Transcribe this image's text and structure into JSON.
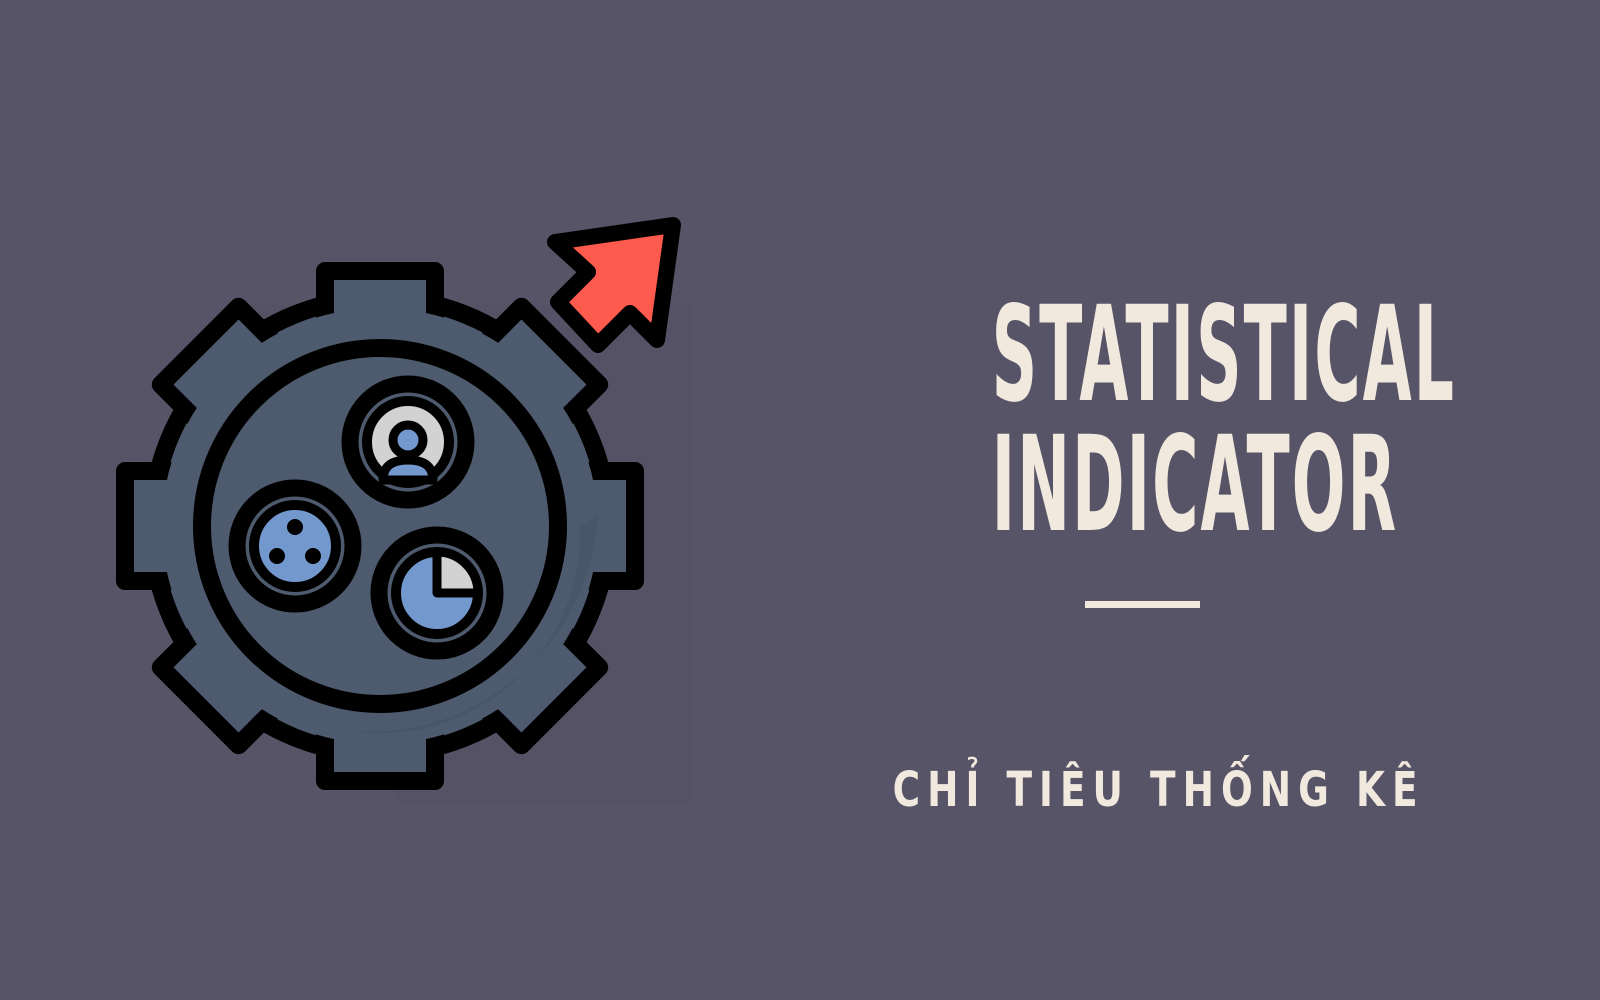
{
  "icon": {
    "name": "statistics-gear-icon",
    "colors": {
      "gear": "#4E5B6E",
      "gear_shadow": "#465164",
      "outline": "#000000",
      "arrow": "#FF5A4E",
      "blue": "#7398CE",
      "gray": "#D2D2D2"
    }
  },
  "title": {
    "line1": "STATISTICAL",
    "line2": "INDICATOR"
  },
  "subtitle": "CHỈ TIÊU THỐNG KÊ",
  "colors": {
    "background": "#585468",
    "text": "#F1E9DE"
  }
}
